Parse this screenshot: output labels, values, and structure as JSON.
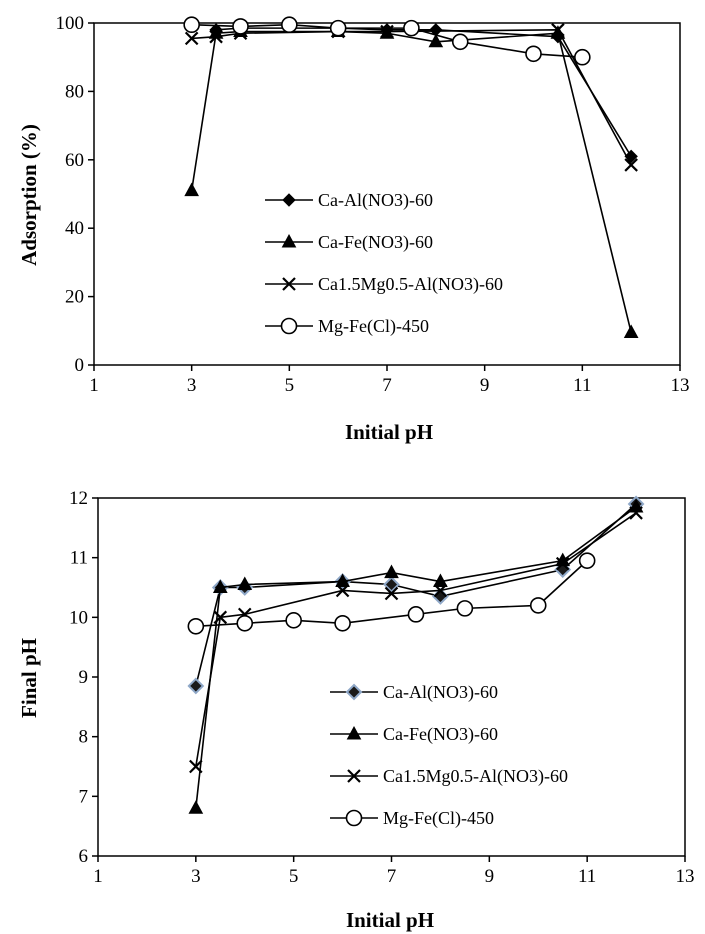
{
  "chart_data": [
    {
      "type": "line",
      "title": "",
      "xlabel": "Initial pH",
      "ylabel": "Adsorption (%)",
      "xlim": [
        1,
        13
      ],
      "ylim": [
        0,
        100
      ],
      "xticks": [
        1,
        3,
        5,
        7,
        9,
        11,
        13
      ],
      "yticks": [
        0,
        20,
        40,
        60,
        80,
        100
      ],
      "legend_position": "center",
      "series": [
        {
          "name": "Ca-Al(NO3)-60",
          "marker": "diamond",
          "x": [
            3.5,
            4,
            6,
            7,
            8,
            10.5,
            12
          ],
          "y": [
            98,
            98.5,
            98.5,
            98,
            98,
            96,
            61
          ]
        },
        {
          "name": "Ca-Fe(NO3)-60",
          "marker": "triangle",
          "x": [
            3,
            3.5,
            4,
            6,
            7,
            8,
            10.5,
            12
          ],
          "y": [
            51,
            97,
            97.5,
            97.5,
            97,
            94.5,
            97,
            9.5
          ]
        },
        {
          "name": "Ca1.5Mg0.5-Al(NO3)-60",
          "marker": "x",
          "x": [
            3,
            3.5,
            4,
            6,
            7,
            10.5,
            12
          ],
          "y": [
            95.5,
            96,
            97,
            97.5,
            97.5,
            98,
            58.5
          ]
        },
        {
          "name": "Mg-Fe(Cl)-450",
          "marker": "circle",
          "x": [
            3,
            4,
            5,
            6,
            7.5,
            8.5,
            10,
            11
          ],
          "y": [
            99.5,
            99,
            99.5,
            98.5,
            98.5,
            94.5,
            91,
            90
          ]
        }
      ]
    },
    {
      "type": "line",
      "title": "",
      "xlabel": "Initial pH",
      "ylabel": "Final pH",
      "xlim": [
        1,
        13
      ],
      "ylim": [
        6,
        12
      ],
      "xticks": [
        1,
        3,
        5,
        7,
        9,
        11,
        13
      ],
      "yticks": [
        6,
        7,
        8,
        9,
        10,
        11,
        12
      ],
      "legend_position": "bottom-center",
      "series": [
        {
          "name": "Ca-Al(NO3)-60",
          "marker": "diamond-blue-outline",
          "x": [
            3,
            3.5,
            4,
            6,
            7,
            8,
            10.5,
            12
          ],
          "y": [
            8.85,
            10.5,
            10.5,
            10.6,
            10.55,
            10.35,
            10.8,
            11.9
          ]
        },
        {
          "name": "Ca-Fe(NO3)-60",
          "marker": "triangle",
          "x": [
            3,
            3.5,
            4,
            6,
            7,
            8,
            10.5,
            12
          ],
          "y": [
            6.8,
            10.5,
            10.55,
            10.6,
            10.75,
            10.6,
            10.95,
            11.85
          ]
        },
        {
          "name": "Ca1.5Mg0.5-Al(NO3)-60",
          "marker": "x",
          "x": [
            3,
            3.5,
            4,
            6,
            7,
            8,
            10.5,
            12
          ],
          "y": [
            7.5,
            10.0,
            10.05,
            10.45,
            10.4,
            10.45,
            10.9,
            11.75
          ]
        },
        {
          "name": "Mg-Fe(Cl)-450",
          "marker": "circle",
          "x": [
            3,
            4,
            5,
            6,
            7.5,
            8.5,
            10,
            11
          ],
          "y": [
            9.85,
            9.9,
            9.95,
            9.9,
            10.05,
            10.15,
            10.2,
            10.95
          ]
        }
      ]
    }
  ],
  "colors": {
    "line": "#000000",
    "diamond_fill_bottom": "#1a1a1a",
    "diamond_outline_bottom": "#8fa8c8"
  }
}
